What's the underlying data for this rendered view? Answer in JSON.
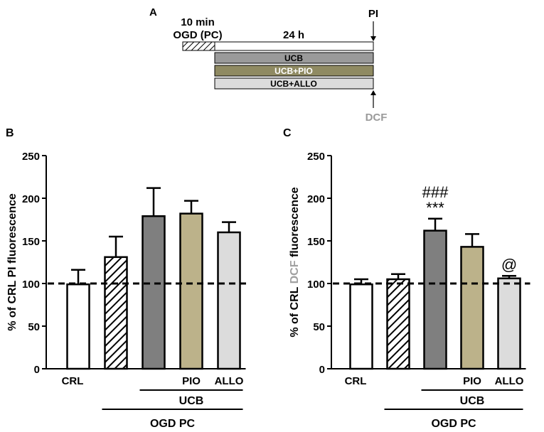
{
  "panel_a": {
    "label": "A",
    "ogd_duration": "10 min",
    "ogd_label": "OGD (PC)",
    "incubation_label": "24 h",
    "pi_label": "PI",
    "dcf_label": "DCF",
    "treatments": [
      {
        "name": "UCB",
        "color": "#9a9a9a"
      },
      {
        "name": "UCB+PIO",
        "color": "#8f8a62"
      },
      {
        "name": "UCB+ALLO",
        "color": "#dcdcdc"
      }
    ]
  },
  "chart_data": [
    {
      "panel": "B",
      "type": "bar",
      "ylabel_prefix": "% of CRL ",
      "ylabel_highlight": "PI",
      "ylabel_suffix": " fluorescence",
      "ylim": [
        0,
        250
      ],
      "yticks": [
        0,
        50,
        100,
        150,
        200,
        250
      ],
      "reference_line": 100,
      "bars": [
        {
          "label": "CRL",
          "value": 99,
          "error": 17,
          "fill": "#ffffff",
          "hatch": false
        },
        {
          "label": "",
          "value": 131,
          "error": 24,
          "fill": "#ffffff",
          "hatch": true
        },
        {
          "label": "",
          "value": 179,
          "error": 33,
          "fill": "#7f7f7f",
          "hatch": false
        },
        {
          "label": "PIO",
          "value": 182,
          "error": 15,
          "fill": "#bcb28a",
          "hatch": false
        },
        {
          "label": "ALLO",
          "value": 160,
          "error": 12,
          "fill": "#dcdcdc",
          "hatch": false
        }
      ],
      "annotations": [],
      "group_labels": {
        "ucb": "UCB",
        "ogd": "OGD PC"
      }
    },
    {
      "panel": "C",
      "type": "bar",
      "ylabel_prefix": "% of CRL ",
      "ylabel_highlight": "DCF",
      "ylabel_suffix": " fluorescence",
      "ylim": [
        0,
        250
      ],
      "yticks": [
        0,
        50,
        100,
        150,
        200,
        250
      ],
      "reference_line": 100,
      "bars": [
        {
          "label": "CRL",
          "value": 99,
          "error": 6,
          "fill": "#ffffff",
          "hatch": false
        },
        {
          "label": "",
          "value": 105,
          "error": 6,
          "fill": "#ffffff",
          "hatch": true
        },
        {
          "label": "",
          "value": 162,
          "error": 14,
          "fill": "#7f7f7f",
          "hatch": false
        },
        {
          "label": "PIO",
          "value": 143,
          "error": 15,
          "fill": "#bcb28a",
          "hatch": false
        },
        {
          "label": "ALLO",
          "value": 106,
          "error": 3,
          "fill": "#dcdcdc",
          "hatch": false
        }
      ],
      "annotations": [
        {
          "bar": 2,
          "lines": [
            "###",
            "***"
          ]
        },
        {
          "bar": 4,
          "lines": [
            "@"
          ]
        }
      ],
      "group_labels": {
        "ucb": "UCB",
        "ogd": "OGD PC"
      }
    }
  ]
}
